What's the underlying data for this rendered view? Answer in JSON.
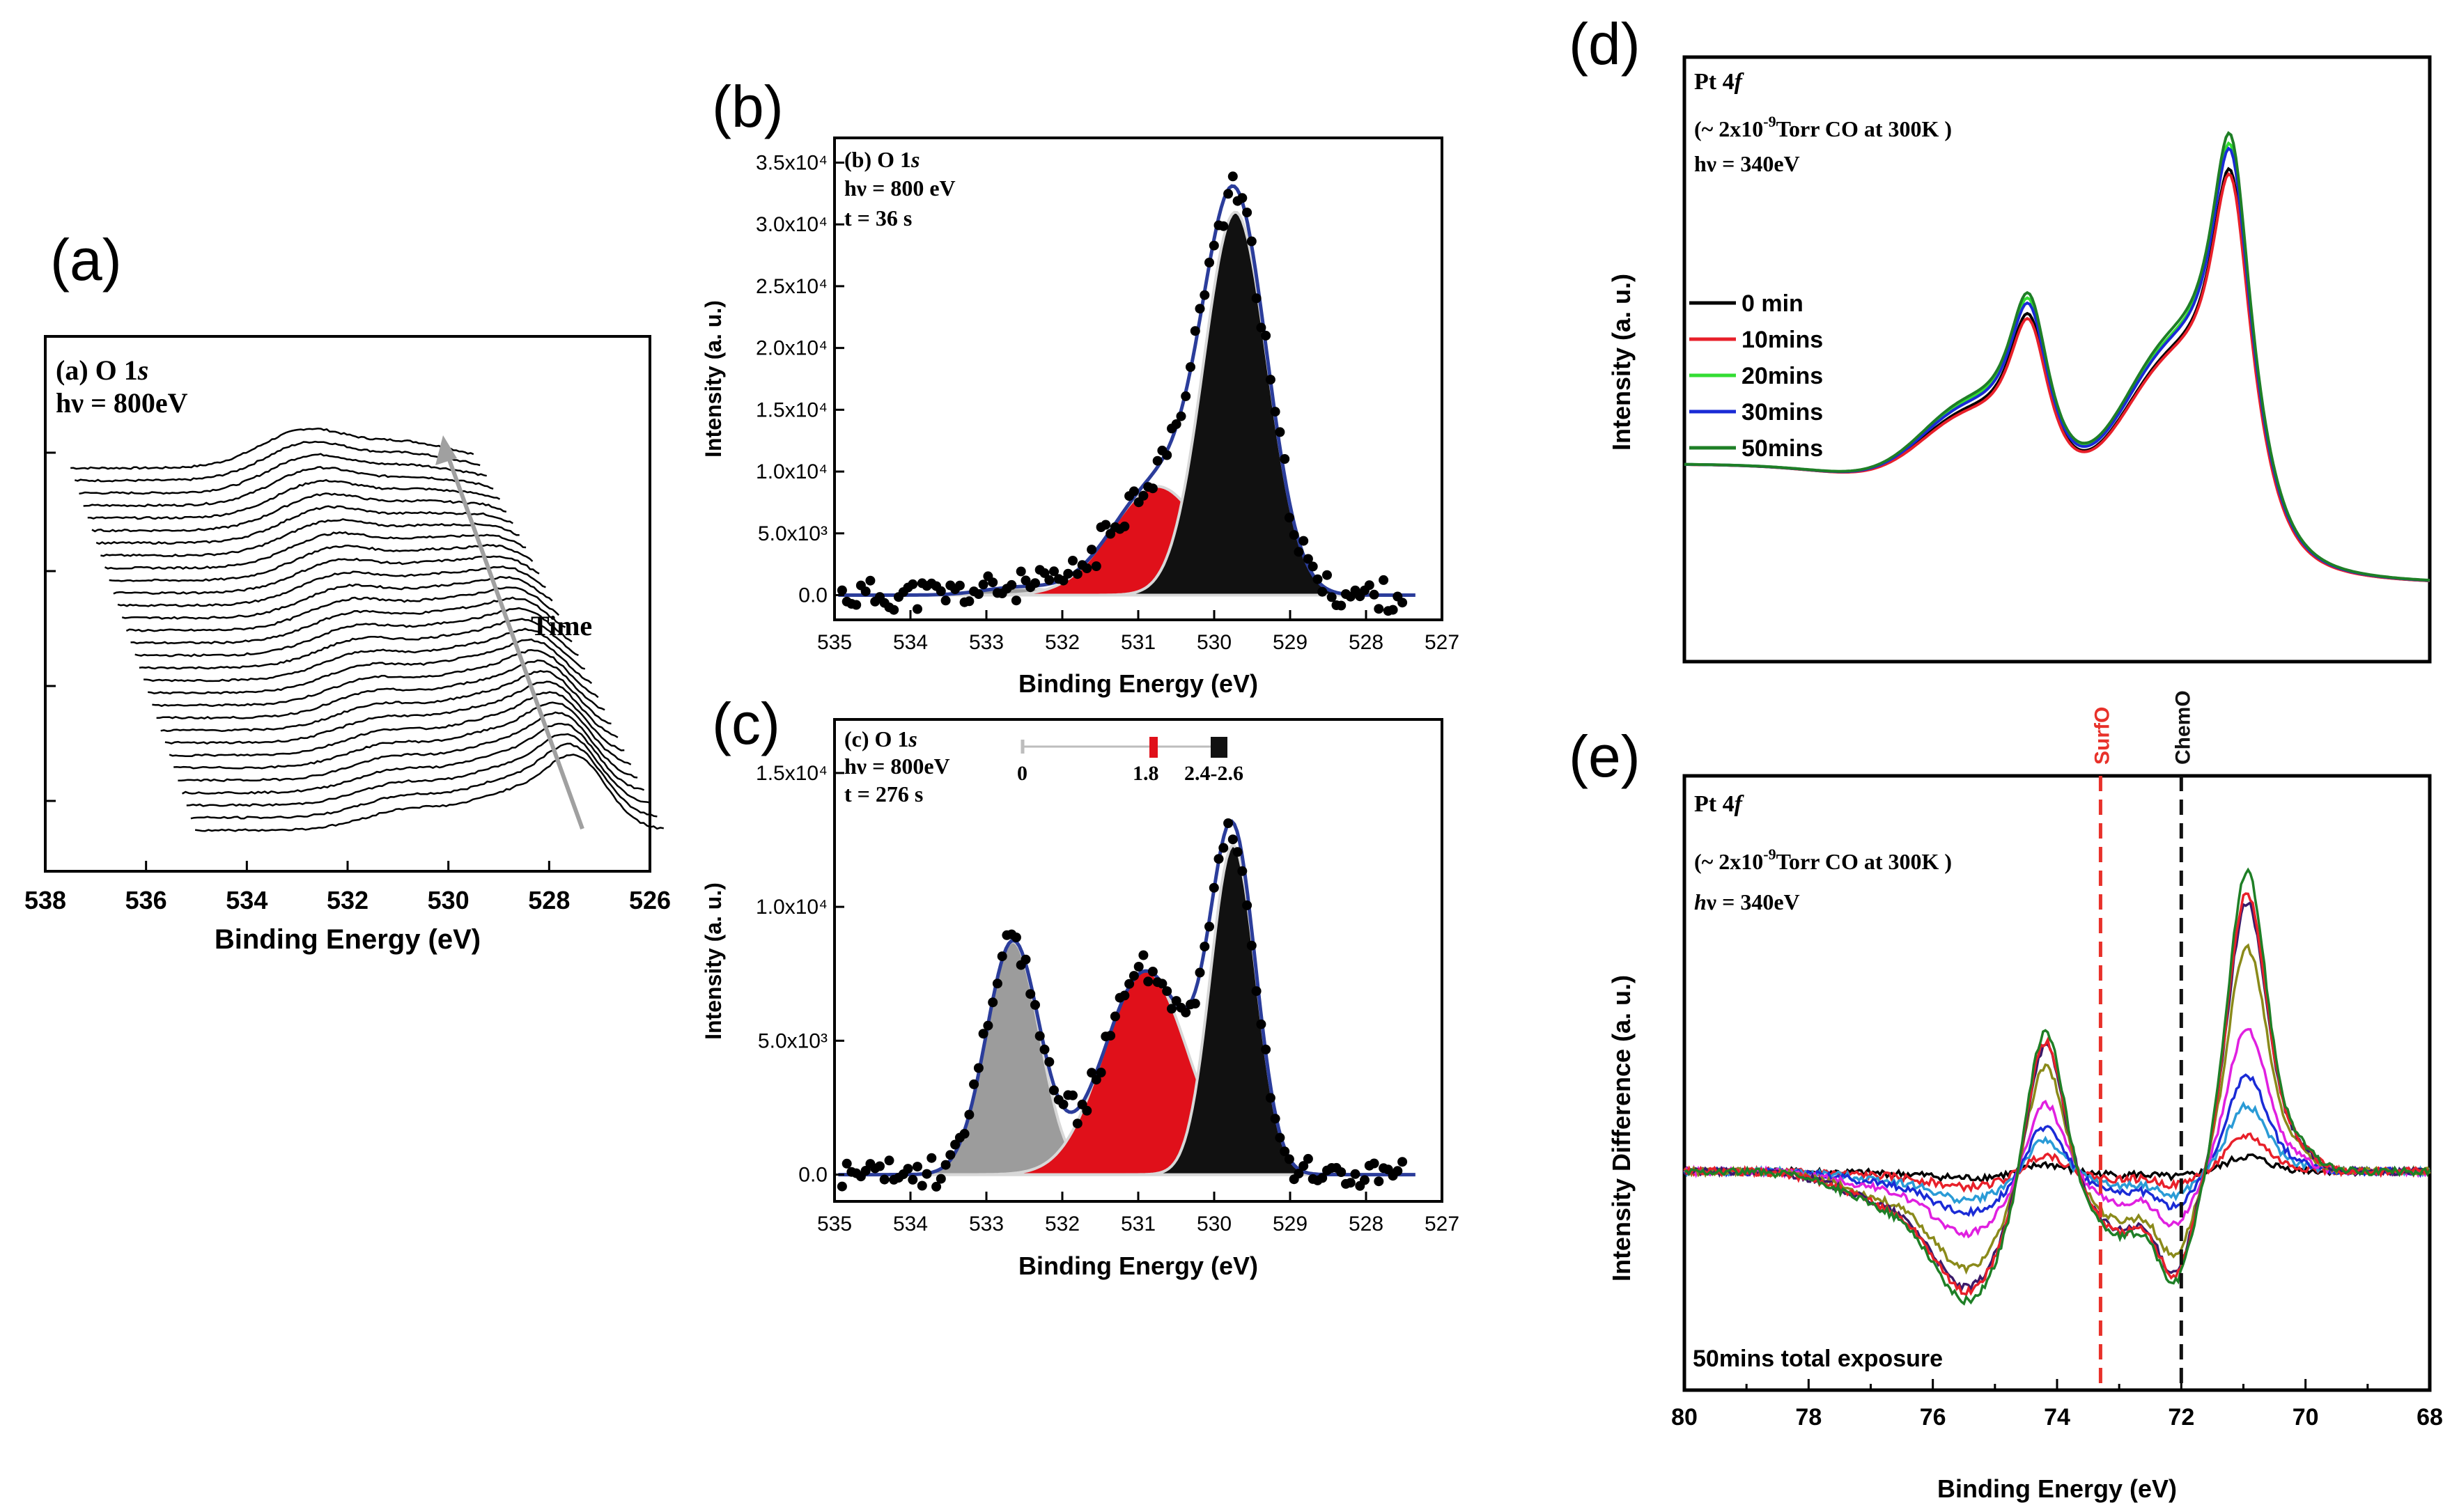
{
  "figure": {
    "panel_letters": {
      "a": "(a)",
      "b": "(b)",
      "c": "(c)",
      "d": "(d)",
      "e": "(e)"
    }
  },
  "colors": {
    "black_peak": "#111111",
    "red_peak": "#e0101a",
    "grey_peak": "#9c9c9c",
    "fit_line": "#2b3d9b",
    "data_points": "#000000",
    "ref_red": "#e8312a",
    "ref_black": "#111111"
  },
  "chart_data": [
    {
      "id": "a",
      "type": "line",
      "title": "(a) O 1s",
      "title_prefix": "(a) O 1",
      "title_italic": "s",
      "photon": "hν = 800eV",
      "xlabel": "Binding Energy (eV)",
      "ylabel": "",
      "xlim": [
        538,
        526
      ],
      "xticks": [
        "538",
        "536",
        "534",
        "532",
        "530",
        "528",
        "526"
      ],
      "arrow_label": "Time",
      "waterfall": {
        "n_traces": 30,
        "peaks": [
          {
            "center": 532.8,
            "width": 0.9,
            "start_height": 1.0,
            "end_height": 0.55
          },
          {
            "center": 530.8,
            "width": 0.8,
            "start_height": 0.6,
            "end_height": 0.9
          },
          {
            "center": 529.5,
            "width": 0.6,
            "start_height": 0.2,
            "end_height": 1.7
          }
        ]
      }
    },
    {
      "id": "b",
      "type": "area",
      "title_prefix": "(b) O 1",
      "title_italic": "s",
      "photon": "hν = 800 eV",
      "time": "t = 36 s",
      "xlabel": "Binding Energy (eV)",
      "ylabel": "Intensity (a. u.)",
      "xlim": [
        535,
        527
      ],
      "ylim": [
        -2000,
        37000
      ],
      "xticks": [
        "535",
        "534",
        "533",
        "532",
        "531",
        "530",
        "529",
        "528",
        "527"
      ],
      "yticks": [
        {
          "value": 0,
          "label": "0.0"
        },
        {
          "value": 5000,
          "label": "5.0x10³"
        },
        {
          "value": 10000,
          "label": "1.0x10⁴"
        },
        {
          "value": 15000,
          "label": "1.5x10⁴"
        },
        {
          "value": 20000,
          "label": "2.0x10⁴"
        },
        {
          "value": 25000,
          "label": "2.5x10⁴"
        },
        {
          "value": 30000,
          "label": "3.0x10⁴"
        },
        {
          "value": 35000,
          "label": "3.5x10⁴"
        }
      ],
      "peaks": [
        {
          "name": "grey",
          "center": 532.6,
          "amplitude": 600,
          "sigma": 0.45,
          "color": "grey"
        },
        {
          "name": "red",
          "center": 530.75,
          "amplitude": 8800,
          "sigma": 0.6,
          "color": "red"
        },
        {
          "name": "black",
          "center": 529.72,
          "amplitude": 31000,
          "sigma": 0.42,
          "color": "black"
        }
      ]
    },
    {
      "id": "c",
      "type": "area",
      "title_prefix": "(c) O 1",
      "title_italic": "s",
      "photon": "hν = 800eV",
      "time": "t = 276 s",
      "legend_bar": {
        "labels": [
          "0",
          "1.8",
          "2.4-2.6"
        ]
      },
      "xlabel": "Binding Energy (eV)",
      "ylabel": "Intensity (a. u.)",
      "xlim": [
        535,
        527
      ],
      "ylim": [
        -1000,
        17000
      ],
      "xticks": [
        "535",
        "534",
        "533",
        "532",
        "531",
        "530",
        "529",
        "528",
        "527"
      ],
      "yticks": [
        {
          "value": 0,
          "label": "0.0"
        },
        {
          "value": 5000,
          "label": "5.0x10³"
        },
        {
          "value": 10000,
          "label": "1.0x10⁴"
        },
        {
          "value": 15000,
          "label": "1.5x10⁴"
        }
      ],
      "peaks": [
        {
          "name": "grey",
          "center": 532.65,
          "amplitude": 8700,
          "sigma": 0.35,
          "color": "grey"
        },
        {
          "name": "red",
          "center": 530.9,
          "amplitude": 7600,
          "sigma": 0.55,
          "color": "red"
        },
        {
          "name": "black",
          "center": 529.75,
          "amplitude": 12300,
          "sigma": 0.3,
          "color": "black"
        }
      ]
    },
    {
      "id": "d",
      "type": "line",
      "title_prefix": "Pt 4",
      "title_italic": "f",
      "condition_prefix": "(~ 2x10",
      "condition_exp": "-9",
      "condition_suffix": "Torr CO  at 300K )",
      "photon": "hν = 340eV",
      "xlabel": "",
      "ylabel": "Intensity (a. u.)",
      "xlim": [
        80,
        68
      ],
      "series": [
        {
          "name": "0 min",
          "color": "#000000",
          "peak1": 0.66,
          "peak2": 0.88
        },
        {
          "name": "10mins",
          "color": "#e8202a",
          "peak1": 0.65,
          "peak2": 0.87
        },
        {
          "name": "20mins",
          "color": "#33dd33",
          "peak1": 0.69,
          "peak2": 0.93
        },
        {
          "name": "30mins",
          "color": "#1a2bd6",
          "peak1": 0.68,
          "peak2": 0.92
        },
        {
          "name": "50mins",
          "color": "#1e7f26",
          "peak1": 0.7,
          "peak2": 0.95
        }
      ],
      "peak_positions": [
        74.45,
        71.2
      ]
    },
    {
      "id": "e",
      "type": "line",
      "title_prefix": "Pt 4",
      "title_italic": "f",
      "condition_prefix": "(~ 2x10",
      "condition_exp": "-9",
      "condition_suffix": "Torr CO  at 300K )",
      "photon_prefix": "h",
      "photon_suffix": "ν = 340eV",
      "footer": "50mins total exposure",
      "xlabel": "Binding Energy (eV)",
      "ylabel": "Intensity Difference (a. u.)",
      "xlim": [
        80,
        68
      ],
      "xticks": [
        "80",
        "78",
        "76",
        "74",
        "72",
        "70",
        "68"
      ],
      "ref_lines": [
        {
          "label": "SurfO",
          "x": 73.3,
          "color": "red"
        },
        {
          "label": "ChemO",
          "x": 72.0,
          "color": "black"
        }
      ],
      "series": [
        {
          "color": "#000000",
          "scale": 0.05
        },
        {
          "color": "#e8202a",
          "scale": 0.12
        },
        {
          "color": "#2a9bd6",
          "scale": 0.22
        },
        {
          "color": "#1a2bd6",
          "scale": 0.32
        },
        {
          "color": "#e020e0",
          "scale": 0.48
        },
        {
          "color": "#8a8a1a",
          "scale": 0.75
        },
        {
          "color": "#3a1a6a",
          "scale": 0.9
        },
        {
          "color": "#e8202a",
          "scale": 0.93
        },
        {
          "color": "#1e7f26",
          "scale": 1.0
        }
      ]
    }
  ]
}
